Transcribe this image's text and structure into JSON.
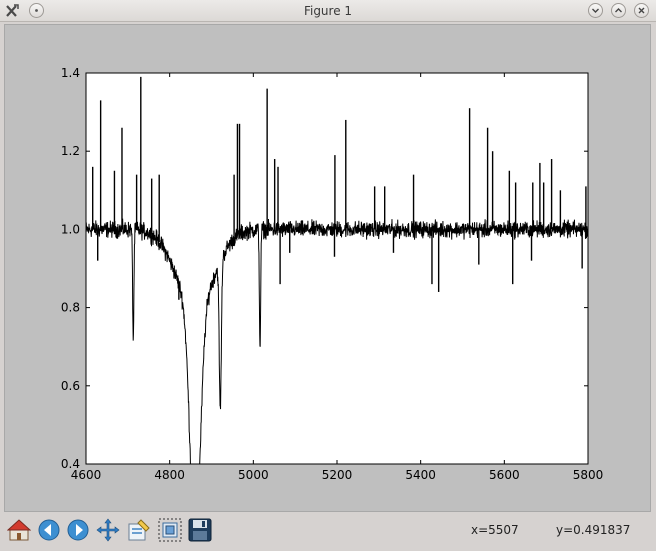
{
  "window": {
    "title": "Figure 1"
  },
  "titlebar_buttons": [
    "minimize",
    "maximize",
    "close"
  ],
  "toolbar": {
    "tools": [
      {
        "name": "home-icon",
        "action": "home"
      },
      {
        "name": "back-icon",
        "action": "back"
      },
      {
        "name": "forward-icon",
        "action": "forward"
      },
      {
        "name": "pan-icon",
        "action": "pan"
      },
      {
        "name": "configure-icon",
        "action": "configure subplots"
      },
      {
        "name": "zoom-icon",
        "action": "zoom to rectangle"
      },
      {
        "name": "save-icon",
        "action": "save"
      }
    ],
    "coord_x": "x=5507",
    "coord_y": "y=0.491837"
  },
  "colors": {
    "figure_background": "#bfbfbf",
    "axes_background": "#ffffff",
    "line": "#000000"
  },
  "chart_data": {
    "type": "line",
    "xlim": [
      4600,
      5800
    ],
    "ylim": [
      0.4,
      1.4
    ],
    "xticks": [
      4600,
      4800,
      5000,
      5200,
      5400,
      5600,
      5800
    ],
    "yticks": [
      0.4,
      0.6,
      0.8,
      1.0,
      1.2,
      1.4
    ],
    "xtick_labels": [
      "4600",
      "4800",
      "5000",
      "5200",
      "5400",
      "5600",
      "5800"
    ],
    "ytick_labels": [
      "0.4",
      "0.6",
      "0.8",
      "1.0",
      "1.2",
      "1.4"
    ],
    "title": "",
    "xlabel": "",
    "ylabel": "",
    "grid": false,
    "continuum": 1.0,
    "noise": 0.018,
    "absorption_profiles": [
      {
        "center": 4861,
        "depth": 0.62,
        "width": 12
      },
      {
        "center": 4861,
        "depth": 0.2,
        "width": 45
      },
      {
        "center": 4921,
        "depth": 0.38,
        "width": 2.5
      },
      {
        "center": 4713,
        "depth": 0.28,
        "width": 1.5
      },
      {
        "center": 5016,
        "depth": 0.3,
        "width": 1.5
      }
    ],
    "spikes": [
      {
        "x": 4616,
        "y": 1.16
      },
      {
        "x": 4635,
        "y": 1.33
      },
      {
        "x": 4668,
        "y": 1.15
      },
      {
        "x": 4686,
        "y": 1.26
      },
      {
        "x": 4721,
        "y": 1.14
      },
      {
        "x": 4731,
        "y": 1.39
      },
      {
        "x": 4757,
        "y": 1.13
      },
      {
        "x": 4775,
        "y": 1.14
      },
      {
        "x": 4954,
        "y": 1.14
      },
      {
        "x": 4962,
        "y": 1.27
      },
      {
        "x": 4967,
        "y": 1.27
      },
      {
        "x": 5033,
        "y": 1.36
      },
      {
        "x": 5051,
        "y": 1.18
      },
      {
        "x": 5059,
        "y": 1.16
      },
      {
        "x": 5195,
        "y": 1.19
      },
      {
        "x": 5221,
        "y": 1.28
      },
      {
        "x": 5290,
        "y": 1.11
      },
      {
        "x": 5314,
        "y": 1.11
      },
      {
        "x": 5383,
        "y": 1.14
      },
      {
        "x": 5517,
        "y": 1.31
      },
      {
        "x": 5560,
        "y": 1.26
      },
      {
        "x": 5572,
        "y": 1.2
      },
      {
        "x": 5612,
        "y": 1.15
      },
      {
        "x": 5627,
        "y": 1.12
      },
      {
        "x": 5668,
        "y": 1.12
      },
      {
        "x": 5685,
        "y": 1.17
      },
      {
        "x": 5694,
        "y": 1.12
      },
      {
        "x": 5713,
        "y": 1.18
      },
      {
        "x": 5734,
        "y": 1.1
      },
      {
        "x": 5795,
        "y": 1.11
      }
    ],
    "dips": [
      {
        "x": 4628,
        "y": 0.92
      },
      {
        "x": 4822,
        "y": 0.82
      },
      {
        "x": 5064,
        "y": 0.86
      },
      {
        "x": 5087,
        "y": 0.94
      },
      {
        "x": 5194,
        "y": 0.93
      },
      {
        "x": 5335,
        "y": 0.94
      },
      {
        "x": 5427,
        "y": 0.86
      },
      {
        "x": 5443,
        "y": 0.84
      },
      {
        "x": 5539,
        "y": 0.91
      },
      {
        "x": 5620,
        "y": 0.86
      },
      {
        "x": 5665,
        "y": 0.92
      },
      {
        "x": 5786,
        "y": 0.9
      }
    ]
  }
}
